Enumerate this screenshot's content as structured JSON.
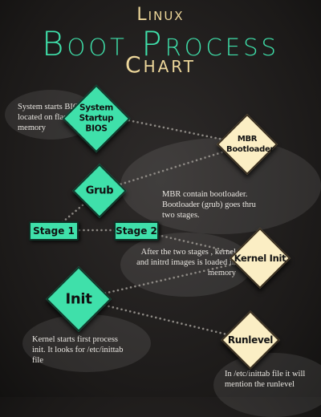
{
  "title": {
    "line1": "Linux",
    "line2": "Boot Process",
    "line3": "Chart"
  },
  "colors": {
    "green": "#3fe0aa",
    "cream": "#fbeec4",
    "title_gold": "#ecd69a",
    "background": "#1e1c1b"
  },
  "nodes": {
    "system_startup": "System Startup BIOS",
    "mbr": "MBR Bootloader",
    "grub": "Grub",
    "stage1": "Stage 1",
    "stage2": "Stage 2",
    "kernel": "Kernel Init",
    "init": "Init",
    "runlevel": "Runlevel"
  },
  "notes": {
    "bios": "System starts BIOS located on flash memory",
    "mbr": "MBR contain bootloader. Bootloader (grub) goes thru two stages.",
    "kernel": "After the two stages , kernel and initrd images is loaded in memory",
    "init": "Kernel starts first process init. It looks for /etc/inittab file",
    "runlevel": "In /etc/inittab file it will mention the runlevel"
  }
}
